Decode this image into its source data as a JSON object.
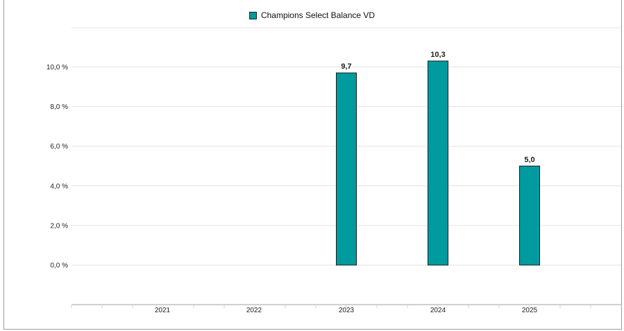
{
  "chart_data": {
    "type": "bar",
    "categories": [
      "2021",
      "2022",
      "2023",
      "2024",
      "2025"
    ],
    "series": [
      {
        "name": "Champions Select Balance VD",
        "values": [
          null,
          null,
          9.7,
          10.3,
          5.0
        ]
      }
    ],
    "data_labels": [
      "",
      "",
      "9,7",
      "10,3",
      "5,0"
    ],
    "yticks": [
      "0,0 %",
      "2,0 %",
      "4,0 %",
      "6,0 %",
      "8,0 %",
      "10,0 %"
    ],
    "ylim": [
      0,
      10
    ],
    "grid": true,
    "legend_position": "top-center",
    "colors": {
      "bar": "#009b9e",
      "bar_border": "#1a1a1a",
      "grid": "#e3e3e3",
      "axis": "#d0d0d0"
    }
  }
}
